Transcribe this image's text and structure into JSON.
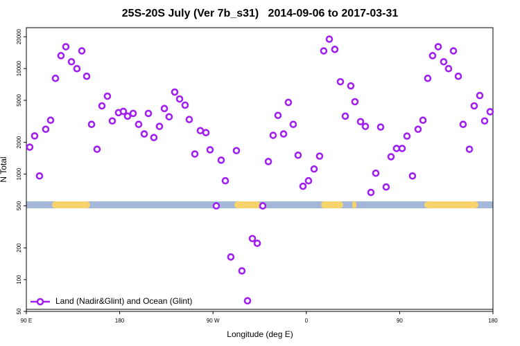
{
  "chart_data": {
    "type": "scatter",
    "title": "25S-20S July (Ver 7b_s31)   2014-09-06 to 2017-03-31",
    "x_label": "Longitude (deg E)",
    "y_label": "N Total",
    "y_log": true,
    "legend": "bottom-left",
    "xlim": [
      90,
      540
    ],
    "ylim": [
      50,
      24400
    ],
    "xticks": [
      {
        "value": 90,
        "label": "90 E"
      },
      180,
      {
        "value": 270,
        "label": "90 W"
      },
      {
        "value": 360,
        "label": "0"
      },
      {
        "value": 450,
        "label": "90"
      },
      {
        "value": 540,
        "label": "180"
      }
    ],
    "yticks": [
      50,
      100,
      200,
      500,
      1000,
      2000,
      5000,
      10000,
      20000
    ],
    "x": [
      93.3,
      98,
      102.7,
      108.7,
      113.4,
      118.1,
      123.4,
      128.1,
      133.5,
      138.8,
      143.5,
      148.2,
      152.9,
      158.2,
      162.9,
      168.2,
      172.9,
      178.9,
      183.6,
      187.6,
      193,
      198.3,
      203.7,
      207.7,
      213,
      218.4,
      223.1,
      227.7,
      233.1,
      237.8,
      243.1,
      247.1,
      252.5,
      257.8,
      263.2,
      267.2,
      273.2,
      277.9,
      281.9,
      287.2,
      292.6,
      297.9,
      303.3,
      308,
      312.7,
      318,
      323.4,
      328,
      332.7,
      338.1,
      342.7,
      347.4,
      352.1,
      356.8,
      362.1,
      367.5,
      372.8,
      376.8,
      382.2,
      387.5,
      392.9,
      397.6,
      402.9,
      406.9,
      412.3,
      417,
      422.3,
      427,
      431.7,
      437,
      441.7,
      447,
      452.4,
      457.1,
      462.4,
      467.8,
      472.5,
      477.1,
      481.8,
      487.2,
      492.5,
      497.2,
      501.9,
      506.6,
      511.2,
      517.3,
      521.9,
      527.3,
      532,
      537.3
    ],
    "series": [
      {
        "name": "Land (Nadir&Glint) and Ocean (Glint)",
        "color": "#a020f0",
        "values": [
          1800,
          2300,
          960,
          2660,
          3240,
          8080,
          13250,
          16100,
          11600,
          9980,
          14700,
          8450,
          2960,
          1720,
          4430,
          5470,
          3190,
          3820,
          3930,
          3540,
          3760,
          2960,
          2400,
          3760,
          2220,
          2830,
          4180,
          3490,
          5990,
          5150,
          4500,
          3290,
          1550,
          2580,
          2470,
          1700,
          500,
          1355,
          865,
          164,
          1670,
          121,
          63,
          245,
          221,
          500,
          1315,
          2330,
          3600,
          2400,
          4780,
          2960,
          1510,
          767,
          865,
          1117,
          1480,
          14700,
          19000,
          15200,
          7500,
          3540,
          6850,
          4850,
          3140,
          2830,
          670,
          1020,
          2790,
          755,
          1460,
          1750,
          1750,
          2290,
          960,
          2660,
          3240,
          8080,
          13250,
          16100,
          11600,
          9980,
          14700,
          8450,
          2960,
          1720,
          4430,
          5550,
          3190,
          3900
        ]
      }
    ]
  }
}
